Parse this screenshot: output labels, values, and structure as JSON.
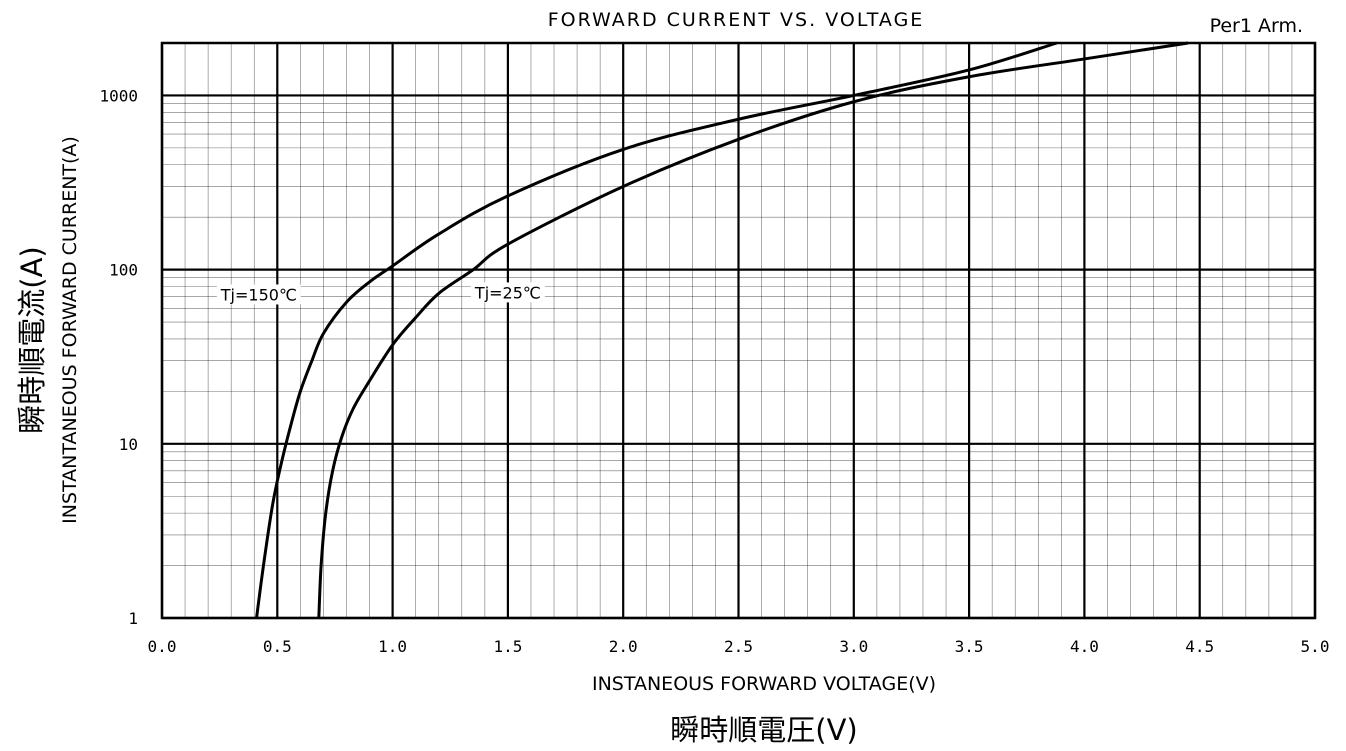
{
  "chart_data": {
    "type": "line",
    "title": "FORWARD CURRENT VS. VOLTAGE",
    "note": "Per1 Arm.",
    "xlabel": "INSTANEOUS FORWARD VOLTAGE(V)",
    "xlabel_jp": "瞬時順電圧(V)",
    "ylabel": "INSTANTANEOUS FORWARD CURRENT(A)",
    "ylabel_jp": "瞬時順電流(A)",
    "xlim": [
      0,
      5
    ],
    "ylim": [
      1,
      2000
    ],
    "y_scale": "log",
    "grid": true,
    "x_ticks": [
      "0.0",
      "0.5",
      "1.0",
      "1.5",
      "2.0",
      "2.5",
      "3.0",
      "3.5",
      "4.0",
      "4.5",
      "5.0"
    ],
    "y_ticks": [
      "1",
      "10",
      "100",
      "1000"
    ],
    "series": [
      {
        "name": "Tj=150℃",
        "label_at": [
          0.42,
          72
        ],
        "x": [
          0.41,
          0.44,
          0.48,
          0.52,
          0.56,
          0.6,
          0.65,
          0.7,
          0.8,
          0.9,
          1.0,
          1.2,
          1.5,
          2.0,
          2.5,
          3.0,
          3.5,
          3.88
        ],
        "y": [
          1,
          2,
          4.5,
          8,
          13,
          20,
          30,
          43,
          65,
          85,
          105,
          160,
          265,
          490,
          730,
          1000,
          1400,
          2000
        ]
      },
      {
        "name": "Tj=25℃",
        "label_at": [
          1.5,
          74
        ],
        "x": [
          0.68,
          0.69,
          0.71,
          0.74,
          0.78,
          0.83,
          0.9,
          1.0,
          1.1,
          1.2,
          1.35,
          1.5,
          2.0,
          2.5,
          3.0,
          3.5,
          4.0,
          4.45
        ],
        "y": [
          1,
          2,
          4,
          7,
          11,
          16,
          23,
          37,
          53,
          73,
          100,
          140,
          300,
          560,
          920,
          1280,
          1620,
          2000
        ]
      }
    ]
  }
}
